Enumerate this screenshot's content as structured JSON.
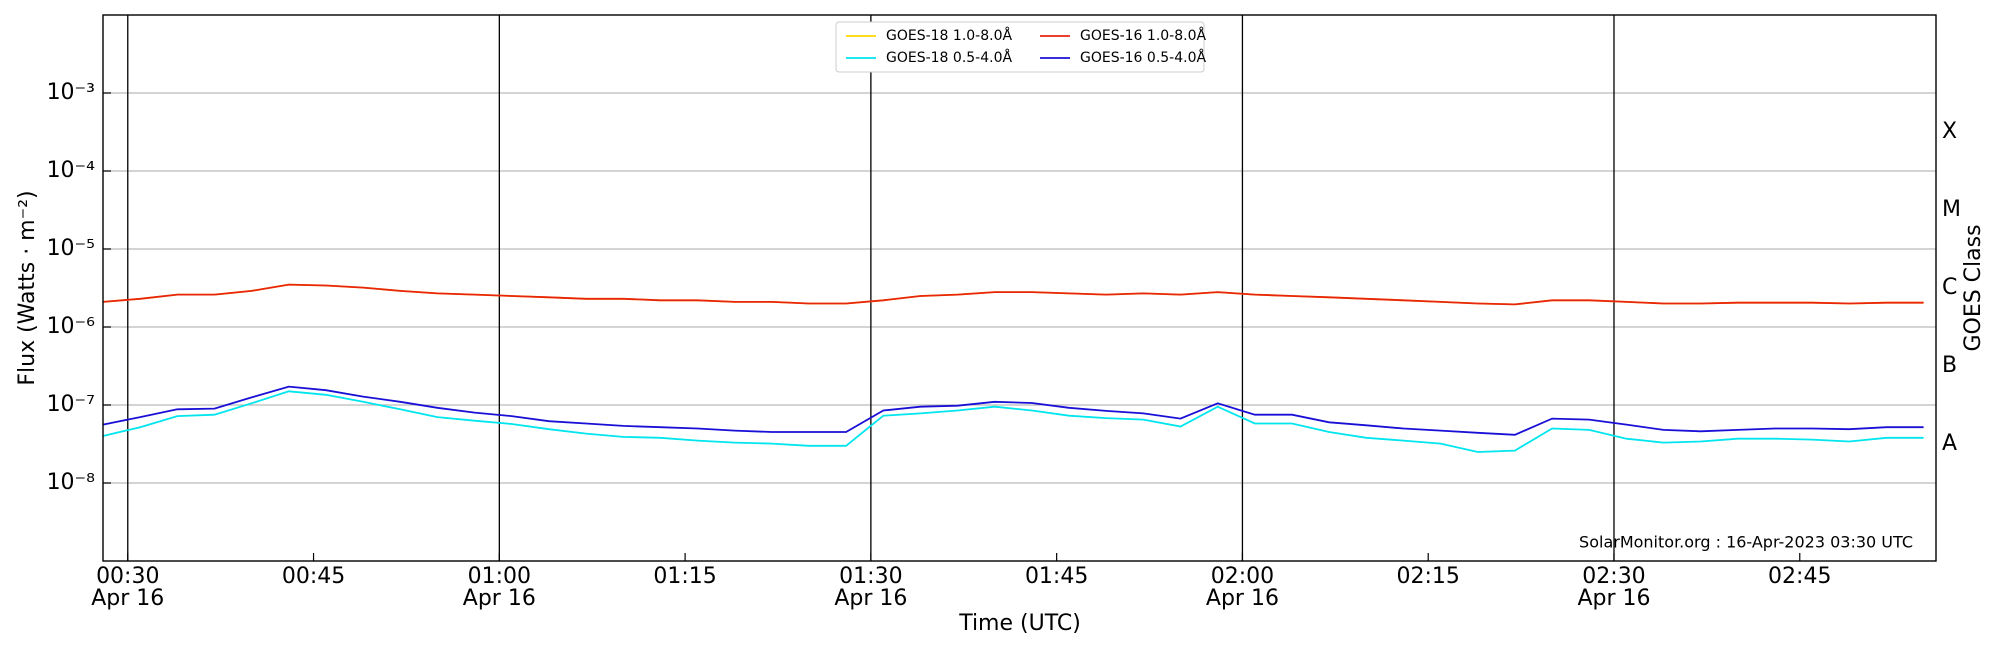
{
  "chart_data": {
    "type": "line",
    "xlabel": "Time (UTC)",
    "ylabel": "Flux (Watts · m⁻²)",
    "y2label": "GOES Class",
    "annotation": "SolarMonitor.org : 16-Apr-2023 03:30 UTC",
    "yscale": "log",
    "grid": true,
    "legend": "upper center",
    "xlim": [
      "00:28",
      "02:56"
    ],
    "xticks": [
      "00:30",
      "00:45",
      "01:00",
      "01:15",
      "01:30",
      "01:45",
      "02:00",
      "02:15",
      "02:30",
      "02:45"
    ],
    "xtick_dates": [
      "Apr 16",
      null,
      "Apr 16",
      null,
      "Apr 16",
      null,
      "Apr 16",
      null,
      "Apr 16",
      null
    ],
    "vlines": [
      "00:30",
      "01:00",
      "01:30",
      "02:00",
      "02:30"
    ],
    "ylim": [
      1e-09,
      0.01
    ],
    "yticks": [
      {
        "value": 1e-08,
        "label": "10⁻⁸"
      },
      {
        "value": 1e-07,
        "label": "10⁻⁷"
      },
      {
        "value": 1e-06,
        "label": "10⁻⁶"
      },
      {
        "value": 1e-05,
        "label": "10⁻⁵"
      },
      {
        "value": 0.0001,
        "label": "10⁻⁴"
      },
      {
        "value": 0.001,
        "label": "10⁻³"
      }
    ],
    "y2lim": [
      1e-09,
      0.01
    ],
    "y2ticks": [
      {
        "value": 3.16e-08,
        "label": "A"
      },
      {
        "value": 3.16e-07,
        "label": "B"
      },
      {
        "value": 3.16e-06,
        "label": "C"
      },
      {
        "value": 3.16e-05,
        "label": "M"
      },
      {
        "value": 0.000316,
        "label": "X"
      }
    ],
    "x": [
      "00:28",
      "00:31",
      "00:34",
      "00:37",
      "00:40",
      "00:43",
      "00:46",
      "00:49",
      "00:52",
      "00:55",
      "00:58",
      "01:01",
      "01:04",
      "01:07",
      "01:10",
      "01:13",
      "01:16",
      "01:19",
      "01:22",
      "01:25",
      "01:28",
      "01:31",
      "01:34",
      "01:37",
      "01:40",
      "01:43",
      "01:46",
      "01:49",
      "01:52",
      "01:55",
      "01:58",
      "02:01",
      "02:04",
      "02:07",
      "02:10",
      "02:13",
      "02:16",
      "02:19",
      "02:22",
      "02:25",
      "02:28",
      "02:31",
      "02:34",
      "02:37",
      "02:40",
      "02:43",
      "02:46",
      "02:49",
      "02:52",
      "02:55"
    ],
    "series": [
      {
        "name": "GOES-18 1.0-8.0Å",
        "color": "#ffd700",
        "values": [
          2.1e-06,
          2.3e-06,
          2.6e-06,
          2.6e-06,
          2.9e-06,
          3.5e-06,
          3.4e-06,
          3.2e-06,
          2.9e-06,
          2.7e-06,
          2.6e-06,
          2.5e-06,
          2.4e-06,
          2.3e-06,
          2.3e-06,
          2.2e-06,
          2.2e-06,
          2.1e-06,
          2.1e-06,
          2e-06,
          2e-06,
          2.2e-06,
          2.5e-06,
          2.6e-06,
          2.8e-06,
          2.8e-06,
          2.7e-06,
          2.6e-06,
          2.7e-06,
          2.6e-06,
          2.8e-06,
          2.6e-06,
          2.5e-06,
          2.4e-06,
          2.3e-06,
          2.2e-06,
          2.1e-06,
          2e-06,
          1.95e-06,
          2.2e-06,
          2.2e-06,
          2.1e-06,
          2e-06,
          2e-06,
          2.05e-06,
          2.05e-06,
          2.05e-06,
          2e-06,
          2.05e-06,
          2.05e-06
        ]
      },
      {
        "name": "GOES-18 0.5-4.0Å",
        "color": "#00e5ee",
        "values": [
          4e-08,
          5.2e-08,
          7.2e-08,
          7.5e-08,
          1.05e-07,
          1.5e-07,
          1.35e-07,
          1.1e-07,
          8.8e-08,
          7e-08,
          6.3e-08,
          5.7e-08,
          4.9e-08,
          4.3e-08,
          3.9e-08,
          3.8e-08,
          3.5e-08,
          3.3e-08,
          3.2e-08,
          3e-08,
          3e-08,
          7.3e-08,
          7.8e-08,
          8.5e-08,
          9.5e-08,
          8.5e-08,
          7.3e-08,
          6.8e-08,
          6.5e-08,
          5.3e-08,
          9.5e-08,
          5.8e-08,
          5.8e-08,
          4.5e-08,
          3.8e-08,
          3.5e-08,
          3.2e-08,
          2.5e-08,
          2.6e-08,
          5e-08,
          4.8e-08,
          3.7e-08,
          3.3e-08,
          3.4e-08,
          3.7e-08,
          3.7e-08,
          3.6e-08,
          3.4e-08,
          3.8e-08,
          3.8e-08
        ]
      },
      {
        "name": "GOES-16 1.0-8.0Å",
        "color": "#e8250f",
        "values": [
          2.1e-06,
          2.3e-06,
          2.6e-06,
          2.6e-06,
          2.9e-06,
          3.5e-06,
          3.4e-06,
          3.2e-06,
          2.9e-06,
          2.7e-06,
          2.6e-06,
          2.5e-06,
          2.4e-06,
          2.3e-06,
          2.3e-06,
          2.2e-06,
          2.2e-06,
          2.1e-06,
          2.1e-06,
          2e-06,
          2e-06,
          2.2e-06,
          2.5e-06,
          2.6e-06,
          2.8e-06,
          2.8e-06,
          2.7e-06,
          2.6e-06,
          2.7e-06,
          2.6e-06,
          2.8e-06,
          2.6e-06,
          2.5e-06,
          2.4e-06,
          2.3e-06,
          2.2e-06,
          2.1e-06,
          2e-06,
          1.95e-06,
          2.2e-06,
          2.2e-06,
          2.1e-06,
          2e-06,
          2e-06,
          2.05e-06,
          2.05e-06,
          2.05e-06,
          2e-06,
          2.05e-06,
          2.05e-06
        ]
      },
      {
        "name": "GOES-16 0.5-4.0Å",
        "color": "#1a0fd6",
        "values": [
          5.6e-08,
          7e-08,
          8.8e-08,
          9e-08,
          1.25e-07,
          1.72e-07,
          1.55e-07,
          1.28e-07,
          1.1e-07,
          9.2e-08,
          8e-08,
          7.2e-08,
          6.2e-08,
          5.8e-08,
          5.4e-08,
          5.2e-08,
          5e-08,
          4.7e-08,
          4.5e-08,
          4.5e-08,
          4.5e-08,
          8.5e-08,
          9.5e-08,
          9.8e-08,
          1.1e-07,
          1.06e-07,
          9.2e-08,
          8.4e-08,
          7.8e-08,
          6.7e-08,
          1.05e-07,
          7.5e-08,
          7.5e-08,
          6e-08,
          5.5e-08,
          5e-08,
          4.7e-08,
          4.4e-08,
          4.15e-08,
          6.7e-08,
          6.5e-08,
          5.6e-08,
          4.8e-08,
          4.6e-08,
          4.8e-08,
          5e-08,
          5e-08,
          4.9e-08,
          5.2e-08,
          5.2e-08
        ]
      }
    ]
  }
}
